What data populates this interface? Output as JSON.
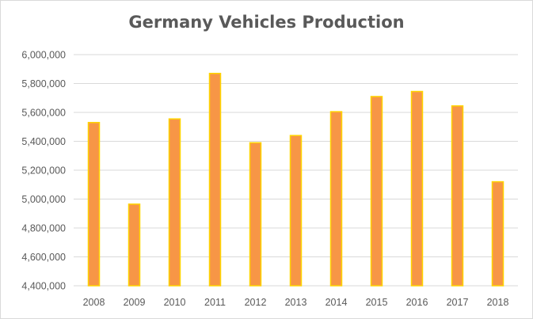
{
  "chart_data": {
    "type": "bar",
    "title": "Germany Vehicles Production",
    "xlabel": "",
    "ylabel": "",
    "categories": [
      "2008",
      "2009",
      "2010",
      "2011",
      "2012",
      "2013",
      "2014",
      "2015",
      "2016",
      "2017",
      "2018"
    ],
    "values": [
      5530000,
      4965000,
      5555000,
      5870000,
      5390000,
      5440000,
      5605000,
      5710000,
      5745000,
      5645000,
      5120000
    ],
    "ylim": [
      4400000,
      6000000
    ],
    "yticks": [
      "4,400,000",
      "4,600,000",
      "4,800,000",
      "5,000,000",
      "5,200,000",
      "5,400,000",
      "5,600,000",
      "5,800,000",
      "6,000,000"
    ],
    "grid": true,
    "legend": "none",
    "colors": {
      "bar_fill": "#f79646",
      "bar_stroke": "#ffd400",
      "grid": "#d9d9d9",
      "text": "#595959"
    }
  }
}
